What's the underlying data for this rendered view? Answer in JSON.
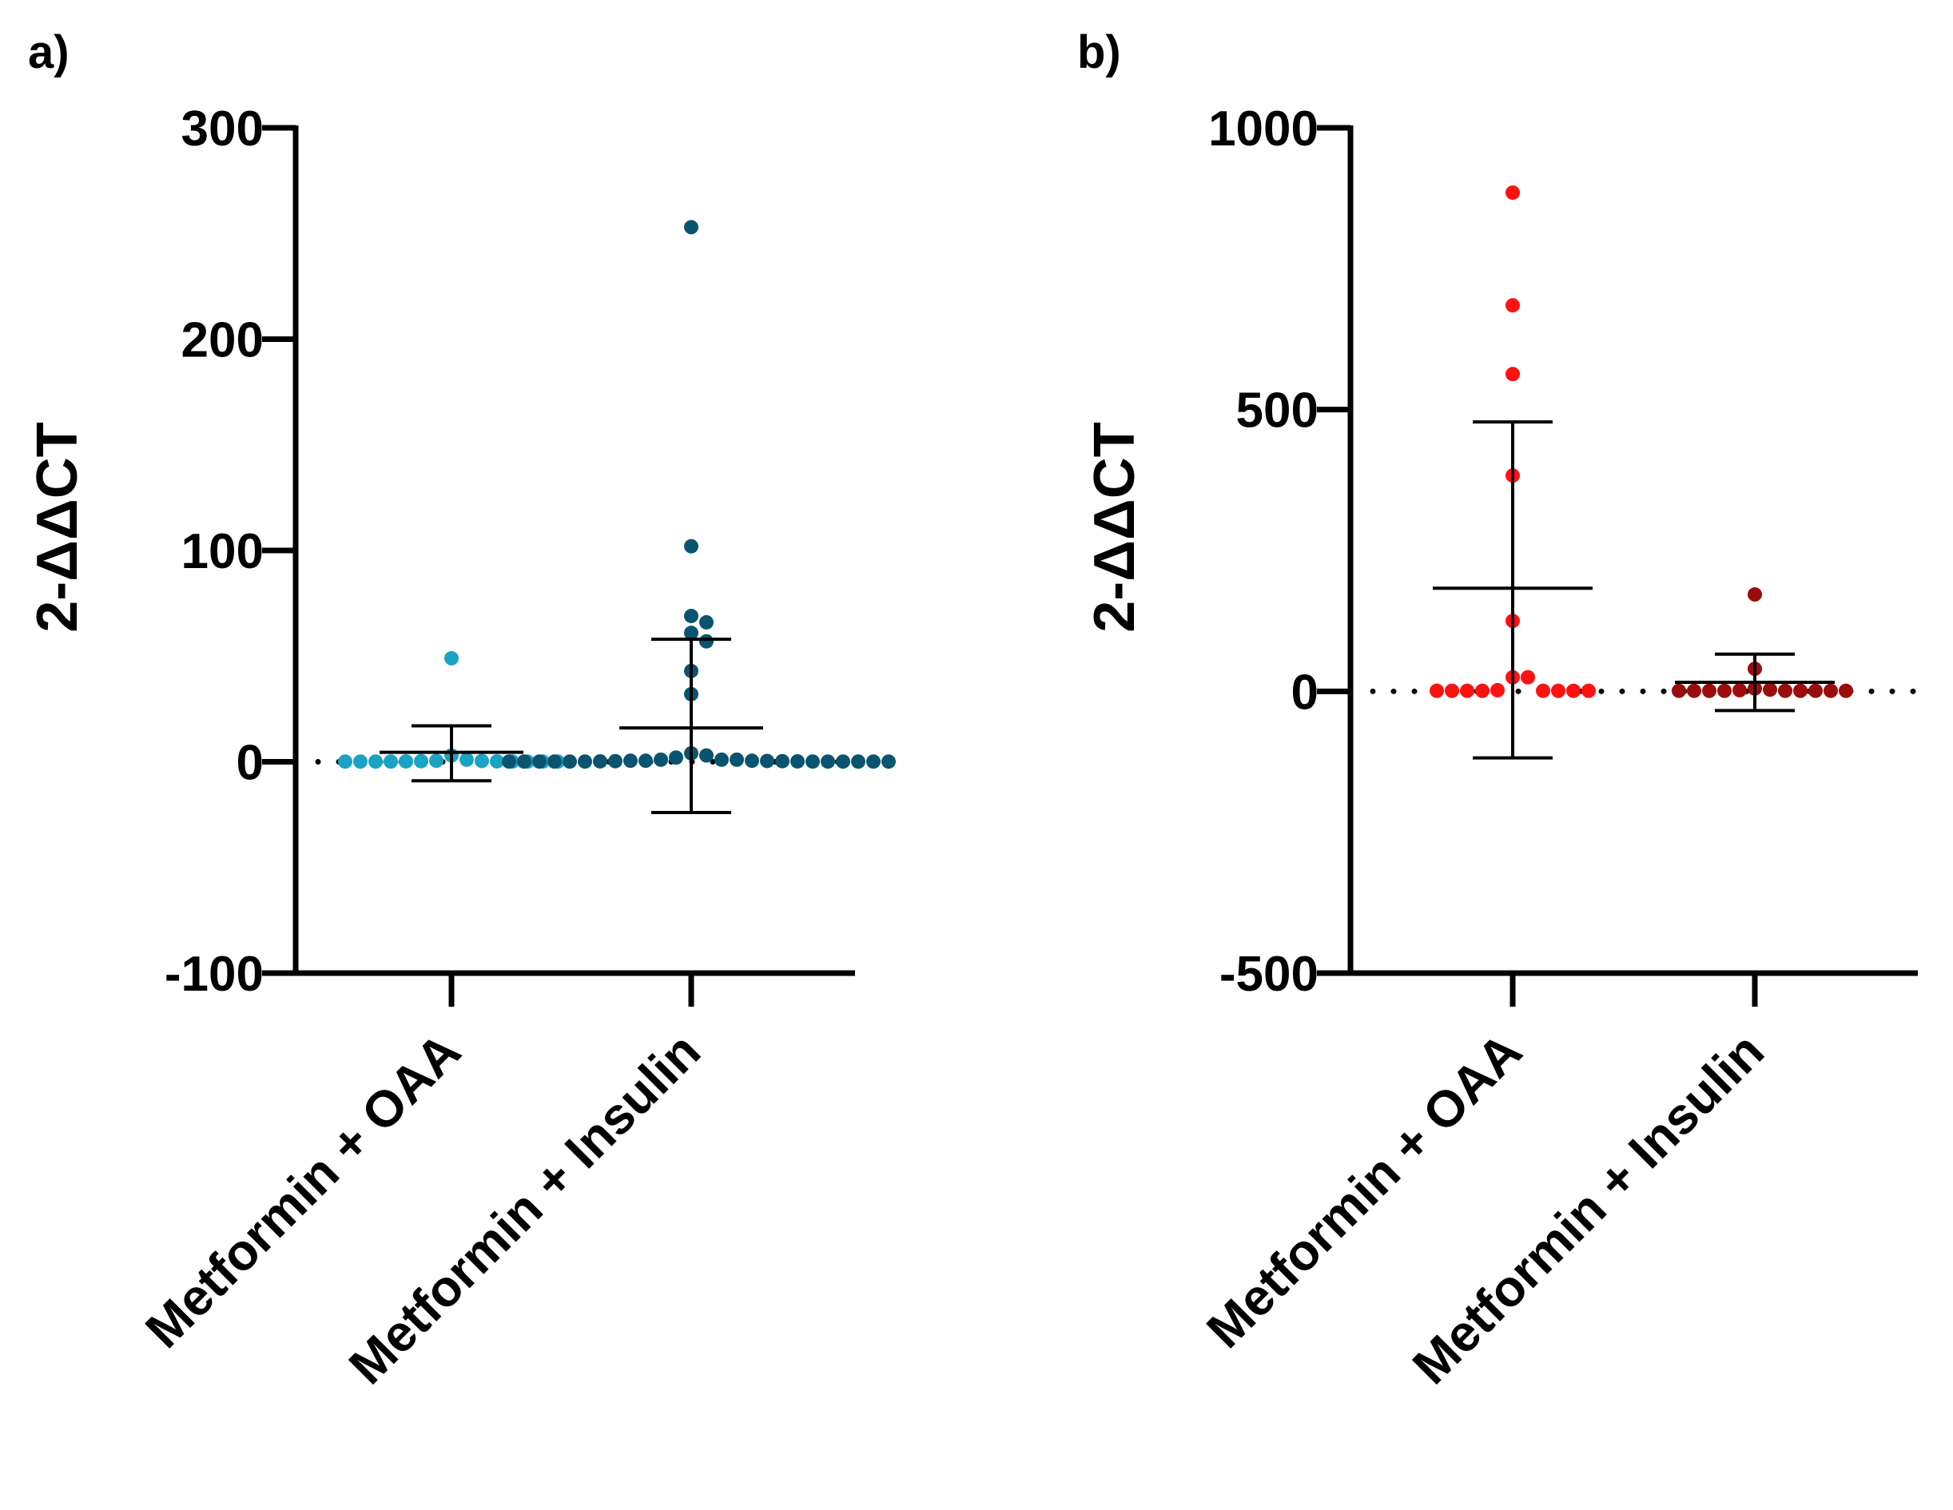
{
  "chart_data": [
    {
      "panel_label": "a)",
      "type": "scatter",
      "ylabel": "2-ΔΔCT",
      "ylim": [
        -100,
        300
      ],
      "yticks": [
        -100,
        0,
        100,
        200,
        300
      ],
      "ytick_labels": [
        "-100",
        "0",
        "100",
        "200",
        "300"
      ],
      "reference_line": 0,
      "categories": [
        "Metformin + OAA",
        "Metformin + Insulin"
      ],
      "groups": [
        {
          "name": "Metformin + OAA",
          "color": "#1aa3c2",
          "points": [
            49,
            3,
            1,
            0.5,
            0.4,
            0.3,
            0.2,
            0.2,
            0.1,
            0.1,
            0.1,
            0.1,
            0.1,
            0.1,
            0.1,
            0.1
          ],
          "mean": 4.5,
          "sd_upper": 17,
          "sd_lower": -9
        },
        {
          "name": "Metformin + Insulin",
          "color": "#0a5470",
          "points": [
            253,
            102,
            69,
            66,
            61,
            57,
            43,
            32,
            4,
            3,
            2,
            1,
            1,
            1,
            0.5,
            0.5,
            0.5,
            0.4,
            0.3,
            0.3,
            0.2,
            0.2,
            0.1,
            0.1,
            0.1,
            0.1,
            0.1,
            0.1,
            0.1,
            0.1,
            0.1,
            0.1,
            0.1,
            0.1
          ],
          "mean": 16,
          "sd_upper": 58,
          "sd_lower": -24
        }
      ]
    },
    {
      "panel_label": "b)",
      "type": "scatter",
      "ylabel": "2-ΔΔCT",
      "ylim": [
        -500,
        1000
      ],
      "yticks": [
        -500,
        0,
        500,
        1000
      ],
      "ytick_labels": [
        "-500",
        "0",
        "500",
        "1000"
      ],
      "reference_line": 0,
      "categories": [
        "Metformin + OAA",
        "Metformin + Insulin"
      ],
      "groups": [
        {
          "name": "Metformin + OAA",
          "color": "#ff1111",
          "points": [
            885,
            685,
            563,
            383,
            125,
            25,
            25,
            2,
            1,
            1,
            1,
            1,
            1,
            1,
            1,
            1
          ],
          "mean": 183,
          "sd_upper": 478,
          "sd_lower": -118
        },
        {
          "name": "Metformin + Insulin",
          "color": "#9b0d0d",
          "points": [
            172,
            40,
            5,
            3,
            2,
            1,
            1,
            1,
            1,
            1,
            1,
            1,
            1,
            1
          ],
          "mean": 16,
          "sd_upper": 66,
          "sd_lower": -34
        }
      ]
    }
  ]
}
